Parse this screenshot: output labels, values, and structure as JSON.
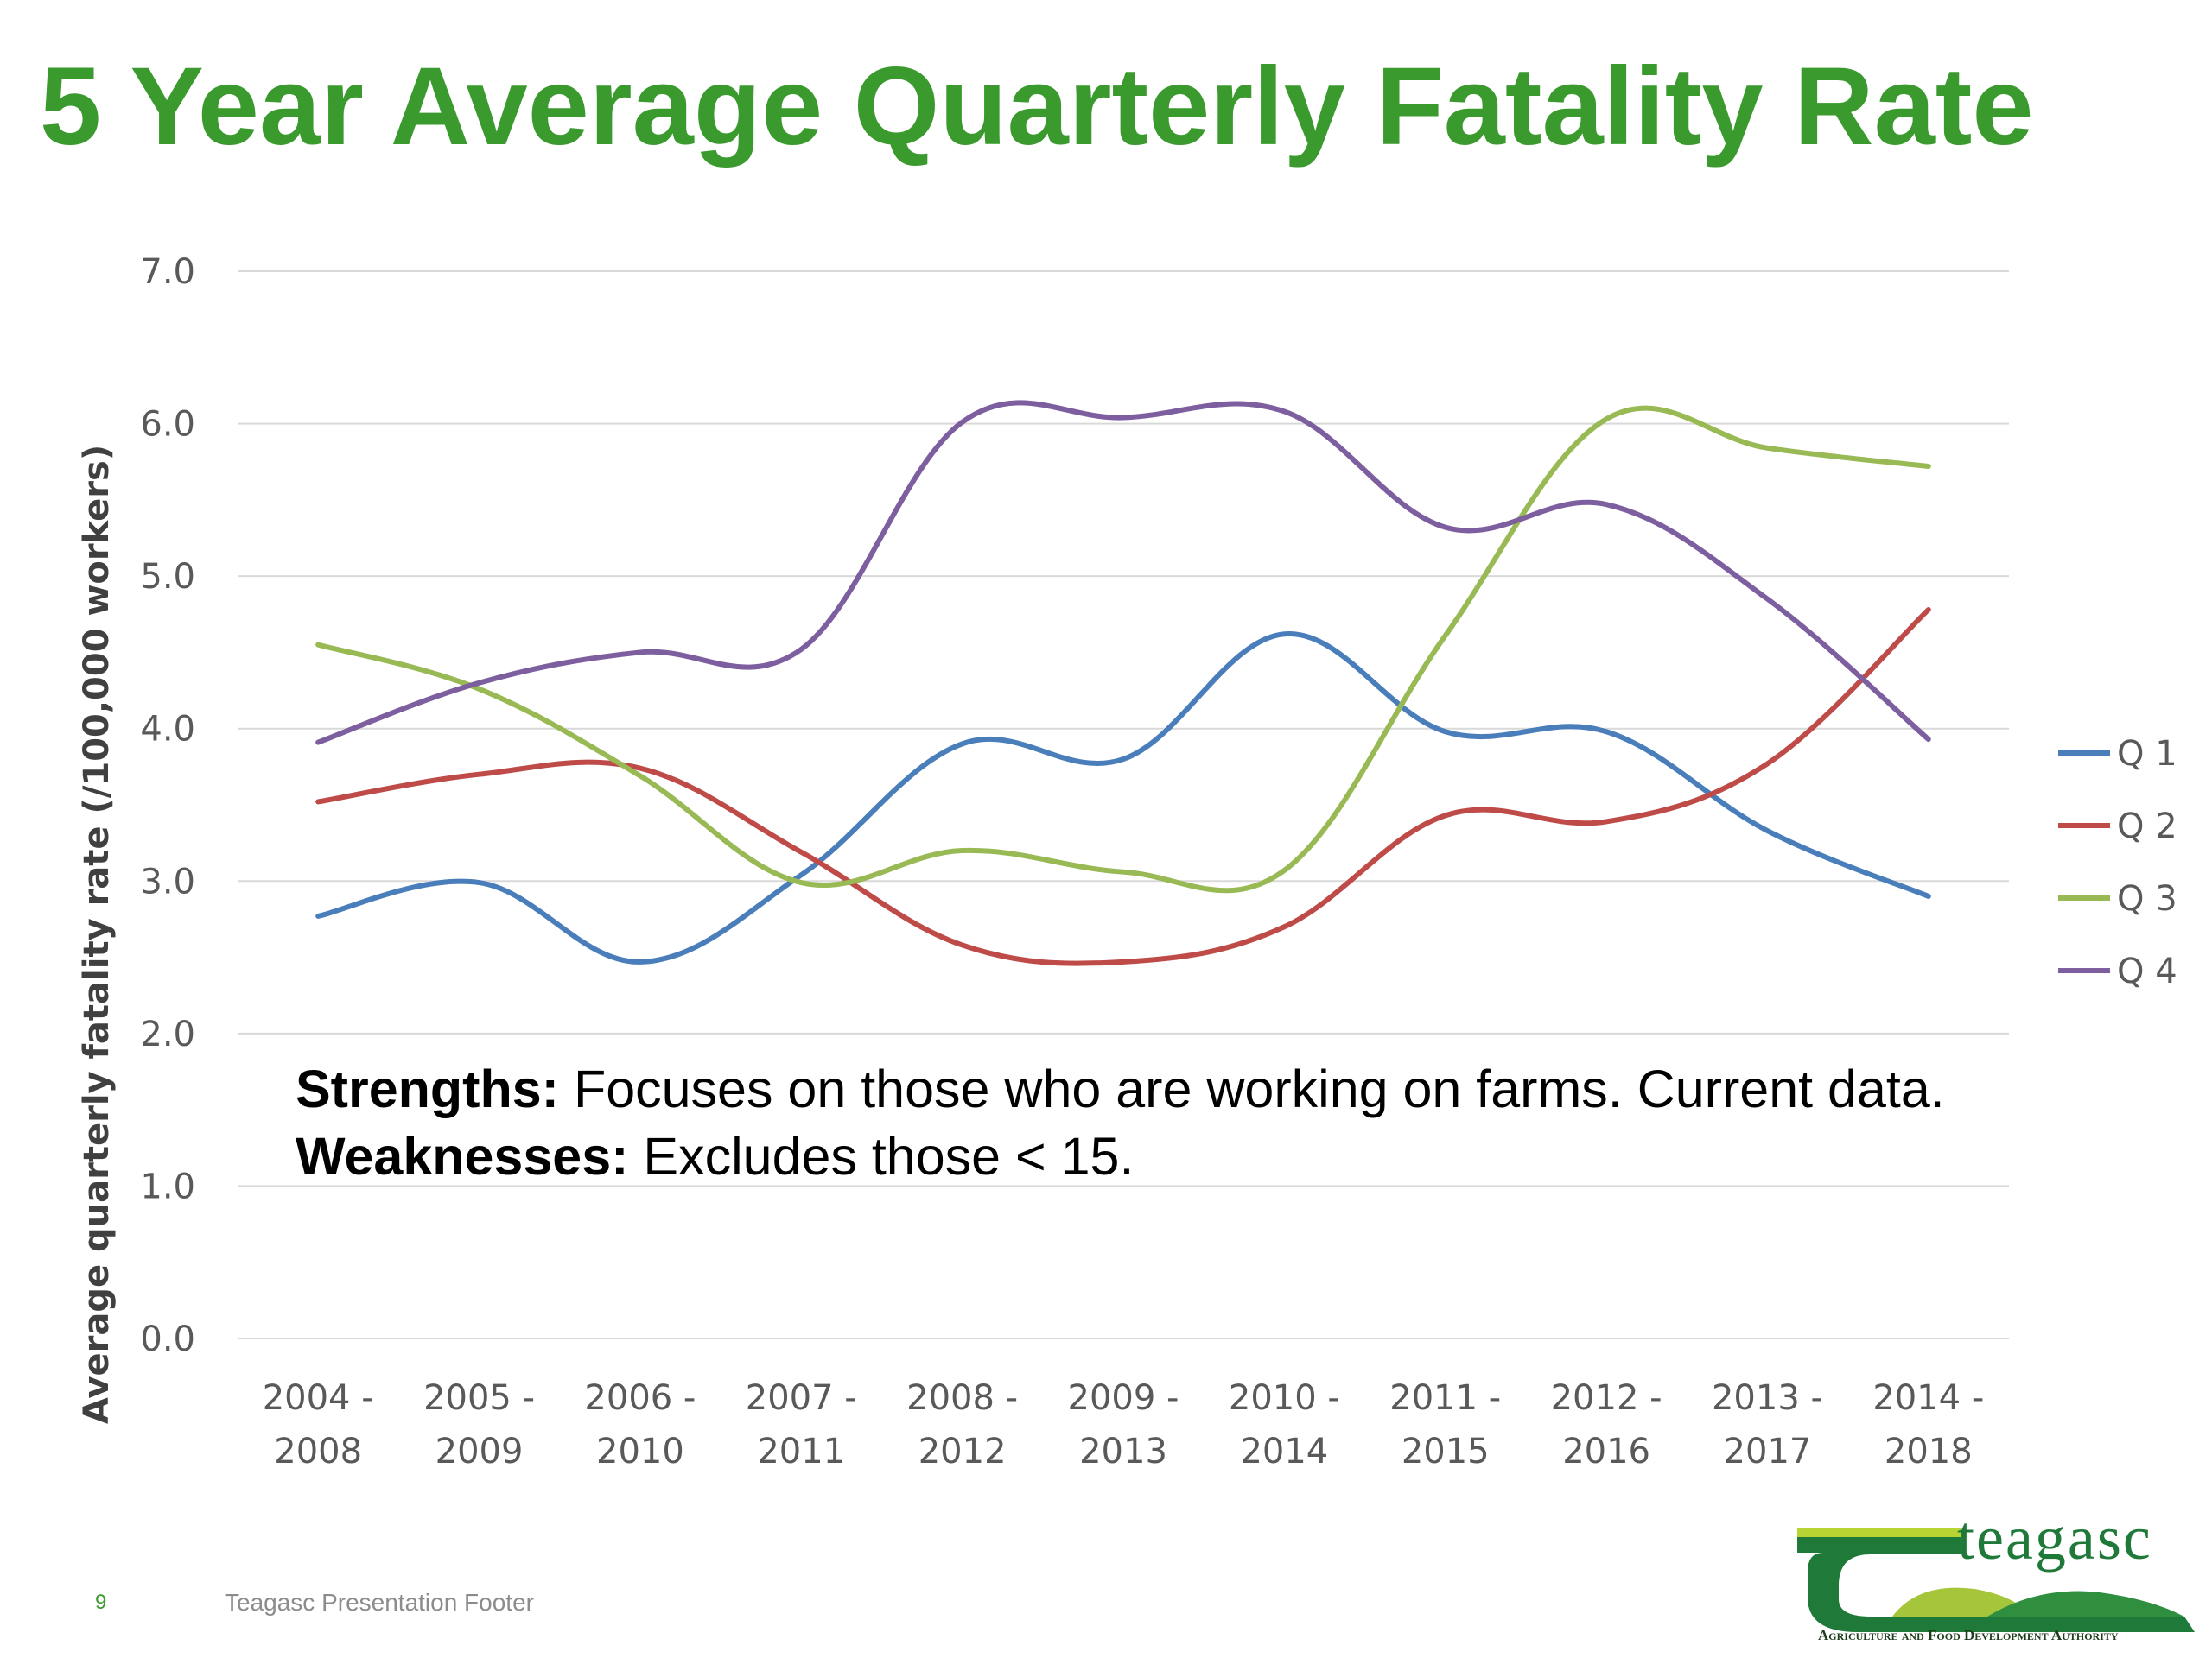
{
  "slide": {
    "title": "5 Year Average Quarterly Fatality Rate",
    "number": "9",
    "footer": "Teagasc Presentation Footer"
  },
  "notes": {
    "strengths_label": "Strengths:",
    "strengths_text": " Focuses on those who are working on farms. Current data.",
    "weaknesses_label": "Weaknesses:",
    "weaknesses_text": " Excludes those < 15."
  },
  "logo": {
    "wordmark": "teagasc",
    "tagline": "Agriculture and Food Development Authority"
  },
  "colors": {
    "title": "#3a9a2e",
    "q1": "#4a7ebb",
    "q2": "#be4b48",
    "q3": "#98b954",
    "q4": "#7d5fa0"
  },
  "chart_data": {
    "type": "line",
    "title": "",
    "xlabel": "",
    "ylabel": "Average quarterly fatality rate (/100,000 workers)",
    "ylim": [
      0,
      7
    ],
    "yticks": [
      "0.0",
      "1.0",
      "2.0",
      "3.0",
      "4.0",
      "5.0",
      "6.0",
      "7.0"
    ],
    "grid": true,
    "legend_position": "right",
    "smooth": true,
    "categories": [
      [
        "2004 -",
        "2008"
      ],
      [
        "2005 -",
        "2009"
      ],
      [
        "2006 -",
        "2010"
      ],
      [
        "2007 -",
        "2011"
      ],
      [
        "2008 -",
        "2012"
      ],
      [
        "2009 -",
        "2013"
      ],
      [
        "2010 -",
        "2014"
      ],
      [
        "2011 -",
        "2015"
      ],
      [
        "2012 -",
        "2016"
      ],
      [
        "2013 -",
        "2017"
      ],
      [
        "2014 -",
        "2018"
      ]
    ],
    "series": [
      {
        "name": "Q 1",
        "color": "#4a7ebb",
        "values": [
          2.77,
          2.99,
          2.47,
          3.04,
          3.9,
          3.8,
          4.62,
          3.98,
          3.98,
          3.33,
          2.9
        ]
      },
      {
        "name": "Q 2",
        "color": "#be4b48",
        "values": [
          3.52,
          3.7,
          3.74,
          3.19,
          2.58,
          2.47,
          2.7,
          3.43,
          3.39,
          3.77,
          4.78
        ]
      },
      {
        "name": "Q 3",
        "color": "#98b954",
        "values": [
          4.55,
          4.26,
          3.69,
          2.99,
          3.2,
          3.06,
          3.07,
          4.61,
          6.03,
          5.84,
          5.72
        ]
      },
      {
        "name": "Q 4",
        "color": "#7d5fa0",
        "values": [
          3.91,
          4.3,
          4.5,
          4.52,
          6.01,
          6.04,
          6.08,
          5.32,
          5.47,
          4.85,
          3.93
        ]
      }
    ]
  }
}
